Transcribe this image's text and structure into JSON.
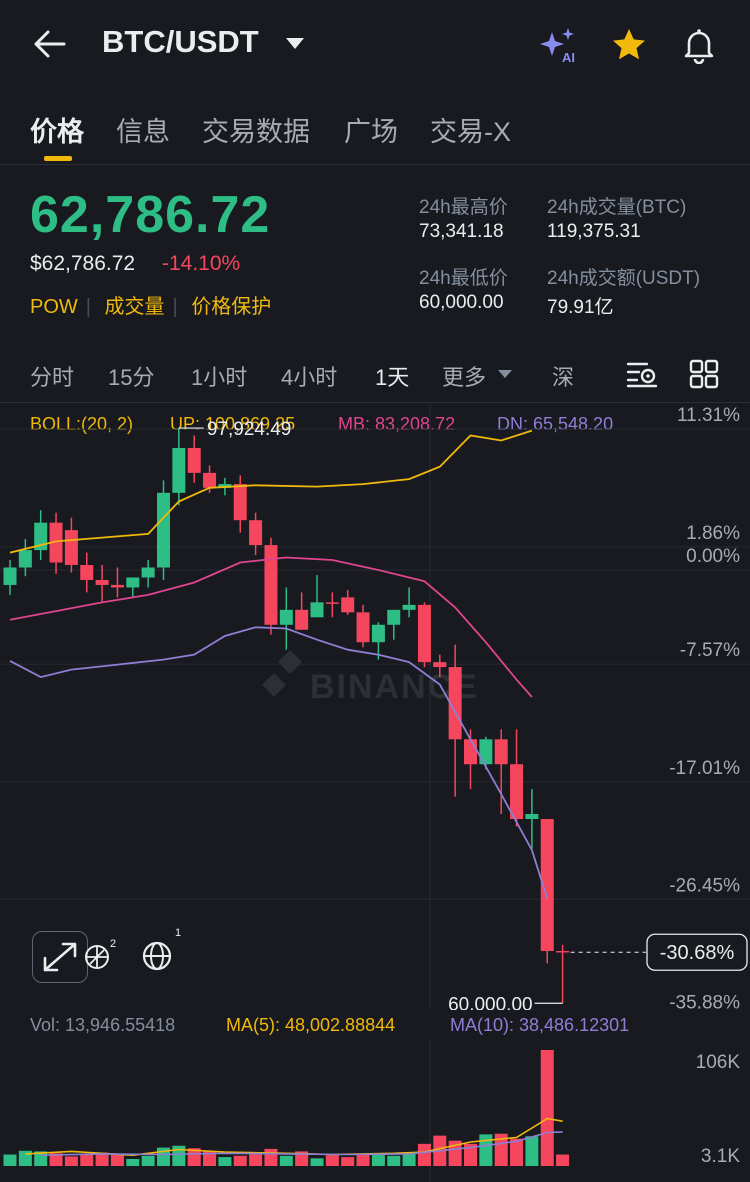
{
  "header": {
    "pair": "BTC/USDT",
    "ai_label": "AI",
    "icons": [
      "back-arrow-icon",
      "chevron-down-icon",
      "ai-sparkle-icon",
      "star-icon",
      "bell-icon"
    ]
  },
  "tabs": [
    {
      "label": "价格",
      "active": true
    },
    {
      "label": "信息"
    },
    {
      "label": "交易数据"
    },
    {
      "label": "广场"
    },
    {
      "label": "交易-X"
    }
  ],
  "ticker": {
    "last_price": "62,786.72",
    "usd_price": "$62,786.72",
    "change": "-14.10%",
    "tags": [
      "POW",
      "成交量",
      "价格保护"
    ],
    "stats": {
      "high_label": "24h最高价",
      "high": "73,341.18",
      "vol_btc_label": "24h成交量(BTC)",
      "vol_btc": "119,375.31",
      "low_label": "24h最低价",
      "low": "60,000.00",
      "vol_usdt_label": "24h成交额(USDT)",
      "vol_usdt": "79.91亿"
    }
  },
  "timeframes": [
    {
      "label": "分时"
    },
    {
      "label": "15分"
    },
    {
      "label": "1小时"
    },
    {
      "label": "4小时"
    },
    {
      "label": "1天",
      "active": true
    },
    {
      "label": "更多"
    },
    {
      "label": "深"
    }
  ],
  "boll": {
    "label": "BOLL:(20, 2)",
    "up": "UP: 100,869.25",
    "mb": "MB: 83,208.72",
    "dn": "DN: 65,548.20"
  },
  "volume_info": {
    "vol": "Vol: 13,946.55418",
    "ma5": "MA(5): 48,002.88844",
    "ma10": "MA(10): 38,486.12301"
  },
  "chart_overlay": {
    "high_marker": "97,924.49",
    "low_marker": "60,000.00",
    "current_change": "-30.68%",
    "watermark": "BINANCE",
    "tool_badges": [
      "2",
      "1"
    ]
  },
  "colors": {
    "up": "#2ebd85",
    "down": "#f6465d",
    "accent": "#f0b90b",
    "boll_up": "#f0b90b",
    "boll_mb": "#e0458f",
    "boll_dn": "#8e7fd4",
    "bg": "#181a20"
  },
  "chart_data": {
    "type": "candlestick",
    "y_axis_labels": [
      "11.31%",
      "1.86%",
      "0.00%",
      "-7.57%",
      "-17.01%",
      "-26.45%",
      "-35.88%"
    ],
    "volume_axis_labels": [
      "106K",
      "3.1K"
    ],
    "candles": [
      {
        "o": -1.2,
        "h": 0.8,
        "l": -2.0,
        "c": 0.2
      },
      {
        "o": 0.2,
        "h": 2.5,
        "l": -0.5,
        "c": 1.6
      },
      {
        "o": 1.6,
        "h": 4.8,
        "l": 0.8,
        "c": 3.8
      },
      {
        "o": 3.8,
        "h": 4.6,
        "l": -0.3,
        "c": 0.6
      },
      {
        "o": 3.2,
        "h": 4.2,
        "l": -0.2,
        "c": 0.4
      },
      {
        "o": 0.4,
        "h": 1.4,
        "l": -1.8,
        "c": -0.8
      },
      {
        "o": -0.8,
        "h": 0.4,
        "l": -2.6,
        "c": -1.2
      },
      {
        "o": -1.2,
        "h": 0.2,
        "l": -2.2,
        "c": -1.4
      },
      {
        "o": -1.4,
        "h": -0.6,
        "l": -2.2,
        "c": -0.6
      },
      {
        "o": -0.6,
        "h": 0.8,
        "l": -1.4,
        "c": 0.2
      },
      {
        "o": 0.2,
        "h": 7.2,
        "l": -0.8,
        "c": 6.2
      },
      {
        "o": 6.2,
        "h": 11.4,
        "l": 5.2,
        "c": 9.8
      },
      {
        "o": 9.8,
        "h": 10.8,
        "l": 7.0,
        "c": 7.8
      },
      {
        "o": 7.8,
        "h": 8.4,
        "l": 6.2,
        "c": 6.6
      },
      {
        "o": 6.6,
        "h": 7.4,
        "l": 6.0,
        "c": 6.9
      },
      {
        "o": 6.9,
        "h": 7.6,
        "l": 3.0,
        "c": 4.0
      },
      {
        "o": 4.0,
        "h": 4.6,
        "l": 1.2,
        "c": 2.0
      },
      {
        "o": 2.0,
        "h": 2.6,
        "l": -5.2,
        "c": -4.4
      },
      {
        "o": -4.4,
        "h": -1.4,
        "l": -6.4,
        "c": -3.2
      },
      {
        "o": -3.2,
        "h": -1.8,
        "l": -4.8,
        "c": -4.8
      },
      {
        "o": -3.8,
        "h": -0.4,
        "l": -3.8,
        "c": -2.6
      },
      {
        "o": -2.6,
        "h": -1.8,
        "l": -3.8,
        "c": -2.7
      },
      {
        "o": -2.2,
        "h": -1.6,
        "l": -3.6,
        "c": -3.4
      },
      {
        "o": -3.4,
        "h": -2.8,
        "l": -6.2,
        "c": -5.8
      },
      {
        "o": -5.8,
        "h": -4.2,
        "l": -7.2,
        "c": -4.4
      },
      {
        "o": -4.4,
        "h": -3.2,
        "l": -5.6,
        "c": -3.2
      },
      {
        "o": -3.2,
        "h": -1.4,
        "l": -3.8,
        "c": -2.8
      },
      {
        "o": -2.8,
        "h": -2.6,
        "l": -7.8,
        "c": -7.4
      },
      {
        "o": -7.4,
        "h": -6.8,
        "l": -8.6,
        "c": -7.8
      },
      {
        "o": -7.8,
        "h": -6.0,
        "l": -18.2,
        "c": -13.6
      },
      {
        "o": -13.6,
        "h": -12.8,
        "l": -17.6,
        "c": -15.6
      },
      {
        "o": -15.6,
        "h": -13.4,
        "l": -16.0,
        "c": -13.6
      },
      {
        "o": -13.6,
        "h": -12.8,
        "l": -19.6,
        "c": -15.6
      },
      {
        "o": -15.6,
        "h": -12.8,
        "l": -20.6,
        "c": -20.0
      },
      {
        "o": -20.0,
        "h": -17.6,
        "l": -22.4,
        "c": -19.6
      },
      {
        "o": -20.0,
        "h": -20.0,
        "l": -31.6,
        "c": -30.6
      },
      {
        "o": -30.6,
        "h": -30.1,
        "l": -34.8,
        "c": -30.7
      }
    ],
    "boll_up": [
      [
        0,
        1.4
      ],
      [
        3,
        2.3
      ],
      [
        6,
        2.6
      ],
      [
        9,
        2.9
      ],
      [
        11,
        5.5
      ],
      [
        13,
        6.6
      ],
      [
        16,
        6.8
      ],
      [
        20,
        6.7
      ],
      [
        23,
        6.9
      ],
      [
        26,
        7.3
      ],
      [
        28,
        8.3
      ],
      [
        30,
        10.8
      ],
      [
        32,
        10.4
      ],
      [
        34,
        11.2
      ]
    ],
    "boll_mb": [
      [
        0,
        -4.0
      ],
      [
        3,
        -3.3
      ],
      [
        6,
        -2.6
      ],
      [
        9,
        -2.0
      ],
      [
        12,
        -1.0
      ],
      [
        15,
        0.6
      ],
      [
        18,
        1.0
      ],
      [
        21,
        0.8
      ],
      [
        24,
        0.0
      ],
      [
        27,
        -0.9
      ],
      [
        29,
        -3.0
      ],
      [
        31,
        -5.8
      ],
      [
        33,
        -8.8
      ],
      [
        34,
        -10.2
      ]
    ],
    "boll_dn": [
      [
        0,
        -7.3
      ],
      [
        2,
        -8.6
      ],
      [
        4,
        -8.0
      ],
      [
        7,
        -7.6
      ],
      [
        10,
        -7.2
      ],
      [
        12,
        -6.8
      ],
      [
        14,
        -5.3
      ],
      [
        16,
        -4.6
      ],
      [
        18,
        -4.7
      ],
      [
        20,
        -5.6
      ],
      [
        22,
        -6.4
      ],
      [
        24,
        -6.8
      ],
      [
        26,
        -7.4
      ],
      [
        28,
        -9.2
      ],
      [
        30,
        -13.6
      ],
      [
        32,
        -18.0
      ],
      [
        34,
        -22.5
      ],
      [
        35,
        -26.4
      ]
    ],
    "volumes": [
      1.5,
      2.1,
      2.0,
      1.7,
      1.2,
      1.6,
      1.8,
      1.5,
      0.8,
      1.3,
      2.6,
      2.9,
      2.5,
      2.0,
      1.1,
      1.3,
      1.8,
      2.4,
      1.3,
      2.0,
      0.9,
      1.4,
      1.1,
      1.5,
      1.6,
      1.3,
      1.6,
      3.2,
      4.5,
      3.7,
      3.2,
      4.7,
      4.8,
      4.0,
      4.4,
      18.1,
      1.5
    ],
    "vol_ma": [
      [
        1,
        1.6
      ],
      [
        4,
        2.0
      ],
      [
        8,
        1.4
      ],
      [
        11,
        2.3
      ],
      [
        14,
        1.9
      ],
      [
        18,
        1.7
      ],
      [
        21,
        1.5
      ],
      [
        25,
        1.7
      ],
      [
        27,
        1.9
      ],
      [
        30,
        3.5
      ],
      [
        33,
        4.2
      ],
      [
        35,
        7.2
      ],
      [
        36,
        6.8
      ]
    ],
    "vol_ma10": [
      [
        2,
        1.4
      ],
      [
        6,
        1.6
      ],
      [
        10,
        1.5
      ],
      [
        14,
        1.7
      ],
      [
        18,
        1.6
      ],
      [
        22,
        1.5
      ],
      [
        26,
        1.6
      ],
      [
        30,
        2.6
      ],
      [
        33,
        3.6
      ],
      [
        35,
        5.0
      ],
      [
        36,
        5.1
      ]
    ]
  }
}
